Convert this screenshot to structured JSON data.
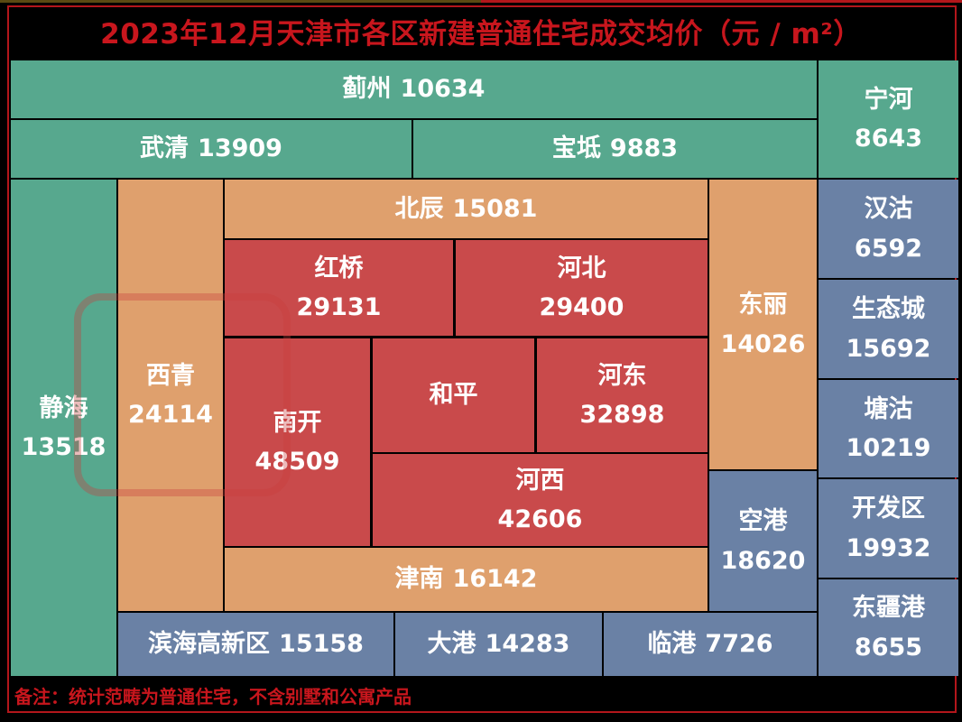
{
  "title": "2023年12月天津市各区新建普通住宅成交均价（元 / m²）",
  "note": "备注：统计范畴为普通住宅，不含别墅和公寓产品",
  "colors": {
    "outer_districts": "#57a88e",
    "ring_districts": "#dfa06d",
    "central_districts": "#c94a4b",
    "binhai_districts": "#6a81a5",
    "title": "#c8161d"
  },
  "chart_data": {
    "type": "treemap",
    "title": "2023年12月天津市各区新建普通住宅成交均价（元 / m²）",
    "cells": [
      {
        "name": "蓟州",
        "value": "10634",
        "group": "green"
      },
      {
        "name": "宁河",
        "value": "8643",
        "group": "green"
      },
      {
        "name": "武清",
        "value": "13909",
        "group": "green"
      },
      {
        "name": "宝坻",
        "value": "9883",
        "group": "green"
      },
      {
        "name": "静海",
        "value": "13518",
        "group": "green"
      },
      {
        "name": "西青",
        "value": "24114",
        "group": "orange"
      },
      {
        "name": "北辰",
        "value": "15081",
        "group": "orange"
      },
      {
        "name": "东丽",
        "value": "14026",
        "group": "orange"
      },
      {
        "name": "津南",
        "value": "16142",
        "group": "orange"
      },
      {
        "name": "红桥",
        "value": "29131",
        "group": "red"
      },
      {
        "name": "河北",
        "value": "29400",
        "group": "red"
      },
      {
        "name": "南开",
        "value": "48509",
        "group": "red"
      },
      {
        "name": "和平",
        "value": "",
        "group": "red"
      },
      {
        "name": "河东",
        "value": "32898",
        "group": "red"
      },
      {
        "name": "河西",
        "value": "42606",
        "group": "red"
      },
      {
        "name": "汉沽",
        "value": "6592",
        "group": "blue"
      },
      {
        "name": "生态城",
        "value": "15692",
        "group": "blue"
      },
      {
        "name": "塘沽",
        "value": "10219",
        "group": "blue"
      },
      {
        "name": "开发区",
        "value": "19932",
        "group": "blue"
      },
      {
        "name": "东疆港",
        "value": "8655",
        "group": "blue"
      },
      {
        "name": "空港",
        "value": "18620",
        "group": "blue"
      },
      {
        "name": "滨海高新区",
        "value": "15158",
        "group": "blue"
      },
      {
        "name": "大港",
        "value": "14283",
        "group": "blue"
      },
      {
        "name": "临港",
        "value": "7726",
        "group": "blue"
      }
    ]
  }
}
